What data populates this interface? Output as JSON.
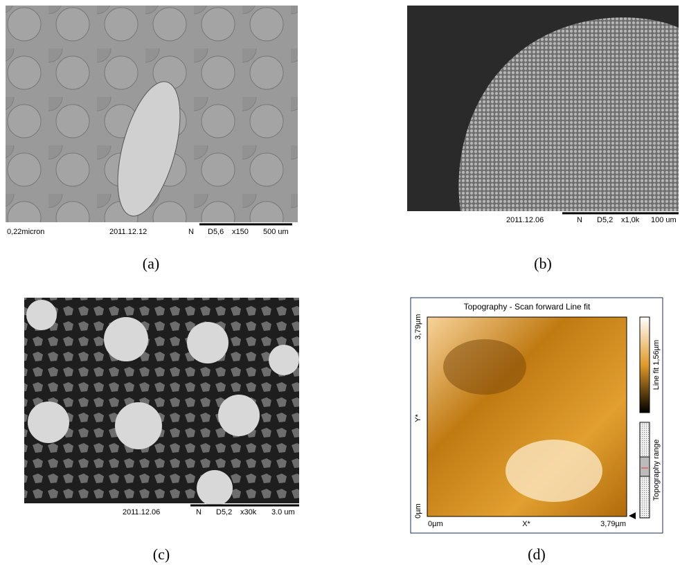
{
  "panels": [
    {
      "caption": "(a)",
      "info_bar": [
        "0,22micron",
        "2011.12.12",
        "N",
        "D5,6",
        "x150",
        "500 um"
      ]
    },
    {
      "caption": "(b)",
      "info_bar": [
        "2011.12.06",
        "N",
        "D5,2",
        "x1,0k",
        "100 um"
      ]
    },
    {
      "caption": "(c)",
      "info_bar": [
        "2011.12.06",
        "N",
        "D5,2",
        "x30k",
        "3.0 um"
      ]
    },
    {
      "caption": "(d)",
      "afm": {
        "title": "Topography - Scan forward   Line fit",
        "y_labels": [
          "3,79µm",
          "Y*",
          "0µm"
        ],
        "x_labels": [
          "0µm",
          "X*",
          "3,79µm"
        ],
        "colorbar_label": "Line fit 1,56µm",
        "range_label": "Topography range"
      }
    }
  ]
}
